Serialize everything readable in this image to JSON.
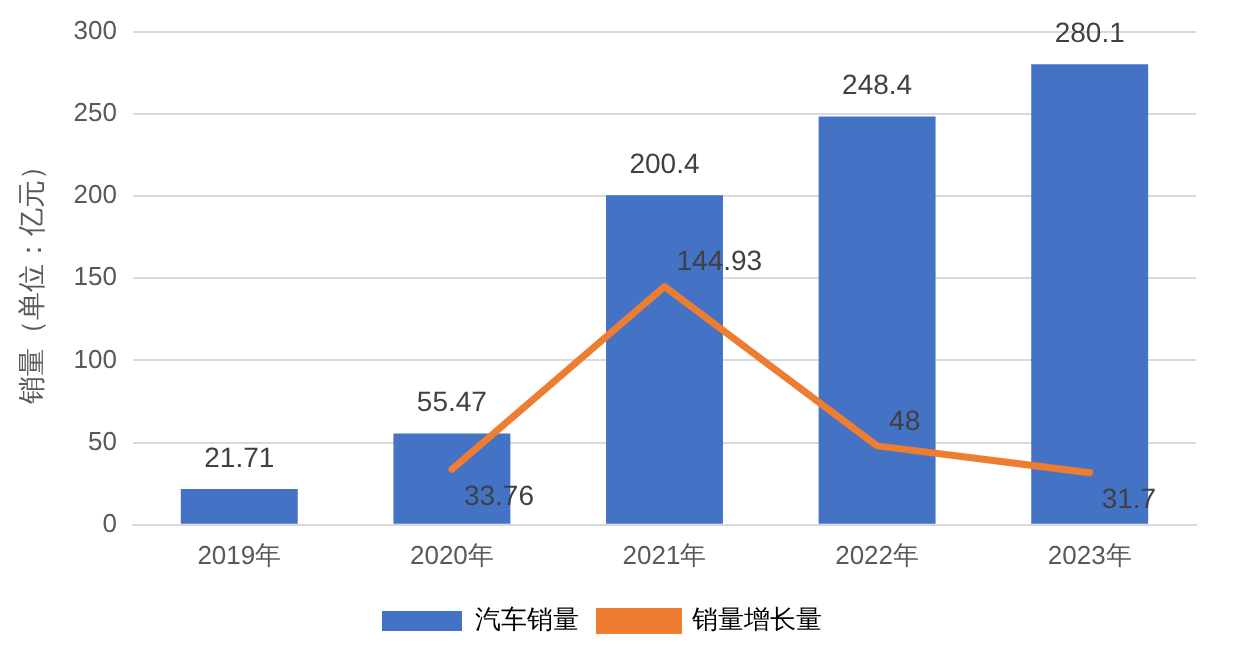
{
  "chart_data": {
    "type": "bar",
    "ylabel": "销量（单位：亿元）",
    "categories": [
      "2019年",
      "2020年",
      "2021年",
      "2022年",
      "2023年"
    ],
    "series": [
      {
        "name": "汽车销量",
        "color": "#4472c4",
        "values": [
          21.71,
          55.47,
          200.4,
          248.4,
          280.1
        ]
      },
      {
        "name": "销量增长量",
        "type": "line",
        "color": "#ed7d31",
        "values": [
          null,
          33.76,
          144.93,
          48,
          31.7
        ]
      }
    ],
    "ylim": [
      0,
      300
    ],
    "yticks": [
      0,
      50,
      100,
      150,
      200,
      250,
      300
    ],
    "grid": "y",
    "legend": "bottom",
    "data_labels": true,
    "marker": "none",
    "line_style": "solid"
  }
}
